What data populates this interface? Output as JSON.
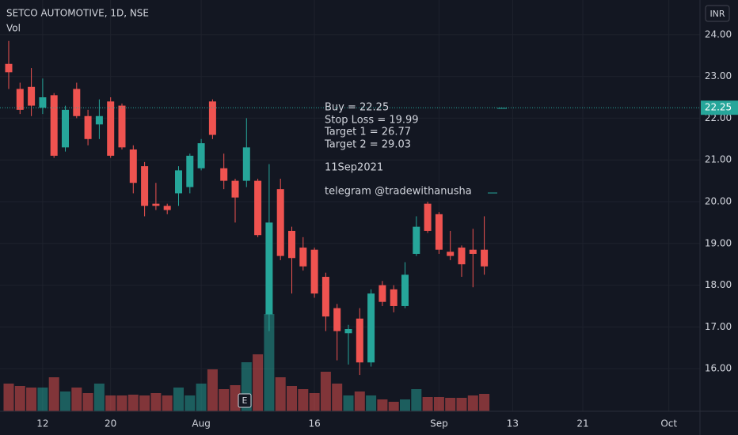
{
  "chart_data": {
    "type": "candlestick",
    "title": "SETCO AUTOMOTIVE, 1D, NSE",
    "volume_label": "Vol",
    "currency": "INR",
    "event_marker": "E",
    "up_color": "#26a69a",
    "down_color": "#ef5350",
    "ylim": [
      14.98,
      24.83
    ],
    "yticks": [
      {
        "value": 16,
        "label": "16.00"
      },
      {
        "value": 17,
        "label": "17.00"
      },
      {
        "value": 18,
        "label": "18.00"
      },
      {
        "value": 19,
        "label": "19.00"
      },
      {
        "value": 20,
        "label": "20.00"
      },
      {
        "value": 21,
        "label": "21.00"
      },
      {
        "value": 22,
        "label": "22.00"
      },
      {
        "value": 23,
        "label": "23.00"
      },
      {
        "value": 24,
        "label": "24.00"
      }
    ],
    "xticks": [
      {
        "value": 3,
        "label": "12"
      },
      {
        "value": 9,
        "label": "20"
      },
      {
        "value": 17,
        "label": "Aug"
      },
      {
        "value": 27,
        "label": "16"
      },
      {
        "value": 38,
        "label": "Sep"
      },
      {
        "value": 44.5,
        "label": "13"
      },
      {
        "value": 50.7,
        "label": "21"
      },
      {
        "value": 58.3,
        "label": "Oct"
      }
    ],
    "grid": true,
    "open": [
      23.3,
      22.7,
      22.75,
      22.25,
      22.55,
      21.3,
      22.7,
      22.05,
      21.85,
      22.4,
      22.3,
      21.25,
      20.85,
      19.95,
      19.9,
      20.2,
      20.35,
      20.8,
      22.4,
      20.8,
      20.5,
      20.5,
      20.5,
      17.3,
      20.3,
      19.3,
      18.9,
      18.85,
      18.2,
      17.45,
      16.85,
      17.2,
      16.15,
      18.0,
      17.9,
      17.5,
      18.75,
      19.95,
      19.7,
      18.8,
      18.9,
      18.85,
      18.85
    ],
    "high": [
      23.85,
      22.85,
      23.2,
      22.95,
      22.6,
      22.3,
      22.85,
      22.2,
      22.45,
      22.5,
      22.35,
      21.35,
      20.95,
      20.45,
      19.95,
      20.85,
      21.15,
      21.5,
      22.45,
      21.15,
      20.55,
      22.0,
      20.55,
      20.9,
      20.55,
      19.4,
      19.15,
      18.9,
      18.3,
      17.55,
      17.05,
      17.45,
      17.9,
      18.1,
      18.0,
      18.55,
      19.65,
      20.0,
      19.75,
      19.3,
      18.95,
      19.35,
      19.65
    ],
    "low": [
      22.7,
      22.1,
      22.05,
      22.1,
      21.05,
      21.2,
      22.0,
      21.35,
      21.5,
      21.05,
      21.25,
      20.2,
      19.65,
      19.8,
      19.7,
      19.9,
      20.2,
      20.75,
      21.5,
      20.3,
      19.5,
      20.35,
      19.15,
      16.9,
      18.6,
      17.8,
      18.35,
      17.7,
      16.9,
      16.2,
      16.1,
      15.85,
      16.05,
      17.5,
      17.35,
      17.45,
      18.7,
      19.25,
      18.75,
      18.6,
      18.2,
      17.95,
      18.25
    ],
    "close": [
      23.1,
      22.2,
      22.3,
      22.5,
      21.1,
      22.2,
      22.05,
      21.5,
      22.05,
      21.1,
      21.3,
      20.45,
      19.9,
      19.9,
      19.8,
      20.75,
      21.1,
      21.4,
      21.6,
      20.5,
      20.1,
      21.3,
      19.2,
      19.5,
      18.7,
      18.65,
      18.45,
      17.8,
      17.25,
      16.9,
      16.95,
      16.15,
      17.8,
      17.6,
      17.5,
      18.25,
      19.4,
      19.3,
      18.85,
      18.7,
      18.5,
      18.75,
      18.45
    ],
    "volumes": [
      35,
      32,
      30,
      30,
      43,
      25,
      30,
      23,
      35,
      20,
      20,
      21,
      20,
      23,
      20,
      30,
      20,
      35,
      53,
      28,
      33,
      62,
      72,
      123,
      43,
      32,
      28,
      23,
      50,
      35,
      20,
      25,
      20,
      15,
      12,
      15,
      28,
      18,
      18,
      17,
      17,
      20,
      22
    ],
    "volume_lim": [
      0,
      130
    ],
    "price_line": 22.25,
    "annotations": [
      "Buy = 22.25",
      "Stop Loss = 19.99",
      "Target 1 = 26.77",
      "Target 2 = 29.03",
      "11Sep2021",
      "telegram @tradewithanusha"
    ]
  }
}
